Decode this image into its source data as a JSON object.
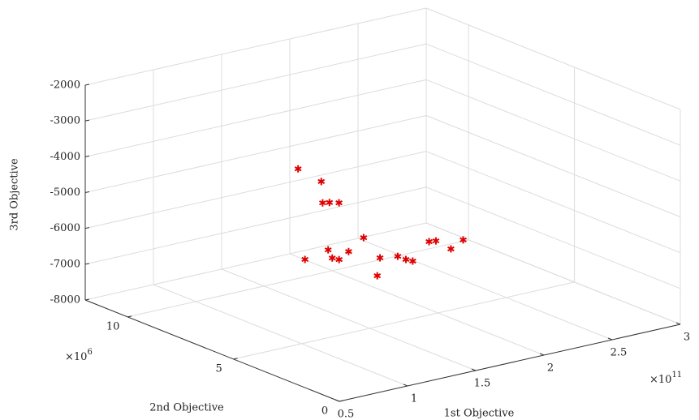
{
  "chart_data": {
    "type": "scatter3d",
    "x_label": "1st Objective",
    "y_label": "2nd Objective",
    "z_label": "3rd Objective",
    "x_scale": {
      "base": "×10",
      "exp": "11"
    },
    "y_scale": {
      "base": "×10",
      "exp": "6"
    },
    "x": [
      1.75,
      1.92,
      1.93,
      1.98,
      2.05,
      1.49,
      1.66,
      1.69,
      1.74,
      1.81,
      1.92,
      2.04,
      2.02,
      2.17,
      2.23,
      2.28,
      2.4,
      2.45,
      2.56,
      2.65
    ],
    "y": [
      10,
      10,
      10,
      10,
      10,
      8,
      8,
      8,
      8,
      8,
      8,
      8,
      8,
      8,
      8,
      8,
      8,
      8,
      8,
      8
    ],
    "z": [
      -4941,
      -5442,
      -6046,
      -6080,
      -6148,
      -6775,
      -6655,
      -6909,
      -6995,
      -6830,
      -6537,
      -7205,
      -7688,
      -7273,
      -7414,
      -7502,
      -7060,
      -7083,
      -7402,
      -7228
    ],
    "color": "#e00000",
    "xlim": [
      0.5,
      3
    ],
    "xticks": [
      0.5,
      1,
      1.5,
      2,
      2.5,
      3
    ],
    "ylim": [
      0,
      12
    ],
    "yticks": [
      0,
      5,
      10
    ],
    "zlim": [
      -8000,
      -2000
    ],
    "zticks": [
      -8000,
      -7000,
      -6000,
      -5000,
      -4000,
      -3000,
      -2000
    ],
    "grid": true
  }
}
